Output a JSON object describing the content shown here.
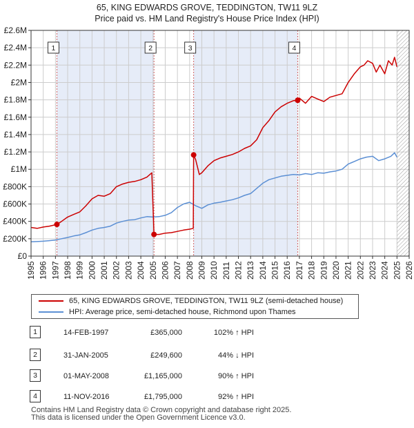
{
  "title_line1": "65, KING EDWARDS GROVE, TEDDINGTON, TW11 9LZ",
  "title_line2": "Price paid vs. HM Land Registry's House Price Index (HPI)",
  "legend": {
    "series1": "65, KING EDWARDS GROVE, TEDDINGTON, TW11 9LZ (semi-detached house)",
    "series2": "HPI: Average price, semi-detached house, Richmond upon Thames"
  },
  "transactions": [
    {
      "num": "1",
      "date": "14-FEB-1997",
      "price": "£365,000",
      "hpi": "102% ↑ HPI"
    },
    {
      "num": "2",
      "date": "31-JAN-2005",
      "price": "£249,600",
      "hpi": "44% ↓ HPI"
    },
    {
      "num": "3",
      "date": "01-MAY-2008",
      "price": "£1,165,000",
      "hpi": "90% ↑ HPI"
    },
    {
      "num": "4",
      "date": "11-NOV-2016",
      "price": "£1,795,000",
      "hpi": "92% ↑ HPI"
    }
  ],
  "footer_line1": "Contains HM Land Registry data © Crown copyright and database right 2025.",
  "footer_line2": "This data is licensed under the Open Government Licence v3.0.",
  "colors": {
    "property": "#cc0000",
    "hpi": "#5b8fd4",
    "shade": "#e6ecf8",
    "grid": "#cccccc"
  },
  "chart_data": {
    "type": "line",
    "title": "65, KING EDWARDS GROVE, TEDDINGTON, TW11 9LZ",
    "subtitle": "Price paid vs. HM Land Registry's House Price Index (HPI)",
    "xlim": [
      1995,
      2026
    ],
    "ylim": [
      0,
      2600000
    ],
    "x_ticks": [
      1995,
      1996,
      1997,
      1998,
      1999,
      2000,
      2001,
      2002,
      2003,
      2004,
      2005,
      2006,
      2007,
      2008,
      2009,
      2010,
      2011,
      2012,
      2013,
      2014,
      2015,
      2016,
      2017,
      2018,
      2019,
      2020,
      2021,
      2022,
      2023,
      2024,
      2025,
      2026
    ],
    "y_ticks": [
      0,
      200000,
      400000,
      600000,
      800000,
      1000000,
      1200000,
      1400000,
      1600000,
      1800000,
      2000000,
      2200000,
      2400000,
      2600000
    ],
    "y_tick_labels": [
      "£0",
      "£200K",
      "£400K",
      "£600K",
      "£800K",
      "£1M",
      "£1.2M",
      "£1.4M",
      "£1.6M",
      "£1.8M",
      "£2M",
      "£2.2M",
      "£2.4M",
      "£2.6M"
    ],
    "grid": true,
    "shaded_ranges": [
      [
        1997.12,
        2005.08
      ],
      [
        2008.33,
        2016.86
      ]
    ],
    "hatched_from": 2025.0,
    "sale_markers": [
      {
        "label": "1",
        "x": 1997.12,
        "y": 365000
      },
      {
        "label": "2",
        "x": 2005.08,
        "y": 249600
      },
      {
        "label": "3",
        "x": 2008.33,
        "y": 1165000
      },
      {
        "label": "4",
        "x": 2016.86,
        "y": 1795000
      }
    ],
    "series": [
      {
        "name": "65, KING EDWARDS GROVE, TEDDINGTON, TW11 9LZ (semi-detached house)",
        "x": [
          1995.0,
          1995.5,
          1996.0,
          1996.5,
          1997.12,
          1997.5,
          1998.0,
          1998.5,
          1999.0,
          1999.5,
          2000.0,
          2000.5,
          2001.0,
          2001.5,
          2002.0,
          2002.5,
          2003.0,
          2003.5,
          2004.0,
          2004.5,
          2004.9,
          2005.08,
          2005.5,
          2006.0,
          2006.5,
          2007.0,
          2007.5,
          2008.0,
          2008.3,
          2008.33,
          2008.5,
          2008.8,
          2009.0,
          2009.5,
          2010.0,
          2010.5,
          2011.0,
          2011.5,
          2012.0,
          2012.5,
          2013.0,
          2013.5,
          2014.0,
          2014.5,
          2015.0,
          2015.5,
          2016.0,
          2016.5,
          2016.86,
          2017.0,
          2017.5,
          2018.0,
          2018.5,
          2019.0,
          2019.5,
          2020.0,
          2020.5,
          2021.0,
          2021.5,
          2022.0,
          2022.3,
          2022.6,
          2023.0,
          2023.3,
          2023.6,
          2024.0,
          2024.3,
          2024.6,
          2024.8,
          2025.0
        ],
        "y": [
          330000,
          320000,
          335000,
          345000,
          365000,
          400000,
          450000,
          480000,
          510000,
          580000,
          660000,
          700000,
          690000,
          720000,
          800000,
          830000,
          850000,
          860000,
          880000,
          910000,
          960000,
          249600,
          250000,
          265000,
          270000,
          285000,
          300000,
          310000,
          320000,
          1165000,
          1110000,
          940000,
          960000,
          1040000,
          1100000,
          1130000,
          1150000,
          1170000,
          1200000,
          1240000,
          1270000,
          1340000,
          1480000,
          1560000,
          1660000,
          1720000,
          1760000,
          1790000,
          1795000,
          1820000,
          1760000,
          1840000,
          1810000,
          1780000,
          1830000,
          1850000,
          1870000,
          2000000,
          2100000,
          2180000,
          2200000,
          2250000,
          2220000,
          2120000,
          2200000,
          2100000,
          2250000,
          2200000,
          2290000,
          2180000
        ]
      },
      {
        "name": "HPI: Average price, semi-detached house, Richmond upon Thames",
        "x": [
          1995.0,
          1995.5,
          1996.0,
          1996.5,
          1997.0,
          1997.5,
          1998.0,
          1998.5,
          1999.0,
          1999.5,
          2000.0,
          2000.5,
          2001.0,
          2001.5,
          2002.0,
          2002.5,
          2003.0,
          2003.5,
          2004.0,
          2004.5,
          2005.0,
          2005.5,
          2006.0,
          2006.5,
          2007.0,
          2007.5,
          2008.0,
          2008.5,
          2009.0,
          2009.5,
          2010.0,
          2010.5,
          2011.0,
          2011.5,
          2012.0,
          2012.5,
          2013.0,
          2013.5,
          2014.0,
          2014.5,
          2015.0,
          2015.5,
          2016.0,
          2016.5,
          2017.0,
          2017.5,
          2018.0,
          2018.5,
          2019.0,
          2019.5,
          2020.0,
          2020.5,
          2021.0,
          2021.5,
          2022.0,
          2022.5,
          2023.0,
          2023.5,
          2024.0,
          2024.5,
          2024.8,
          2025.0
        ],
        "y": [
          165000,
          168000,
          172000,
          178000,
          185000,
          200000,
          215000,
          232000,
          245000,
          270000,
          300000,
          320000,
          330000,
          345000,
          380000,
          400000,
          415000,
          420000,
          440000,
          455000,
          450000,
          455000,
          470000,
          500000,
          560000,
          600000,
          620000,
          580000,
          550000,
          590000,
          610000,
          620000,
          635000,
          650000,
          670000,
          700000,
          720000,
          780000,
          840000,
          880000,
          900000,
          920000,
          930000,
          940000,
          935000,
          950000,
          940000,
          960000,
          955000,
          970000,
          980000,
          1000000,
          1060000,
          1090000,
          1120000,
          1140000,
          1150000,
          1100000,
          1120000,
          1150000,
          1190000,
          1140000
        ]
      }
    ]
  }
}
